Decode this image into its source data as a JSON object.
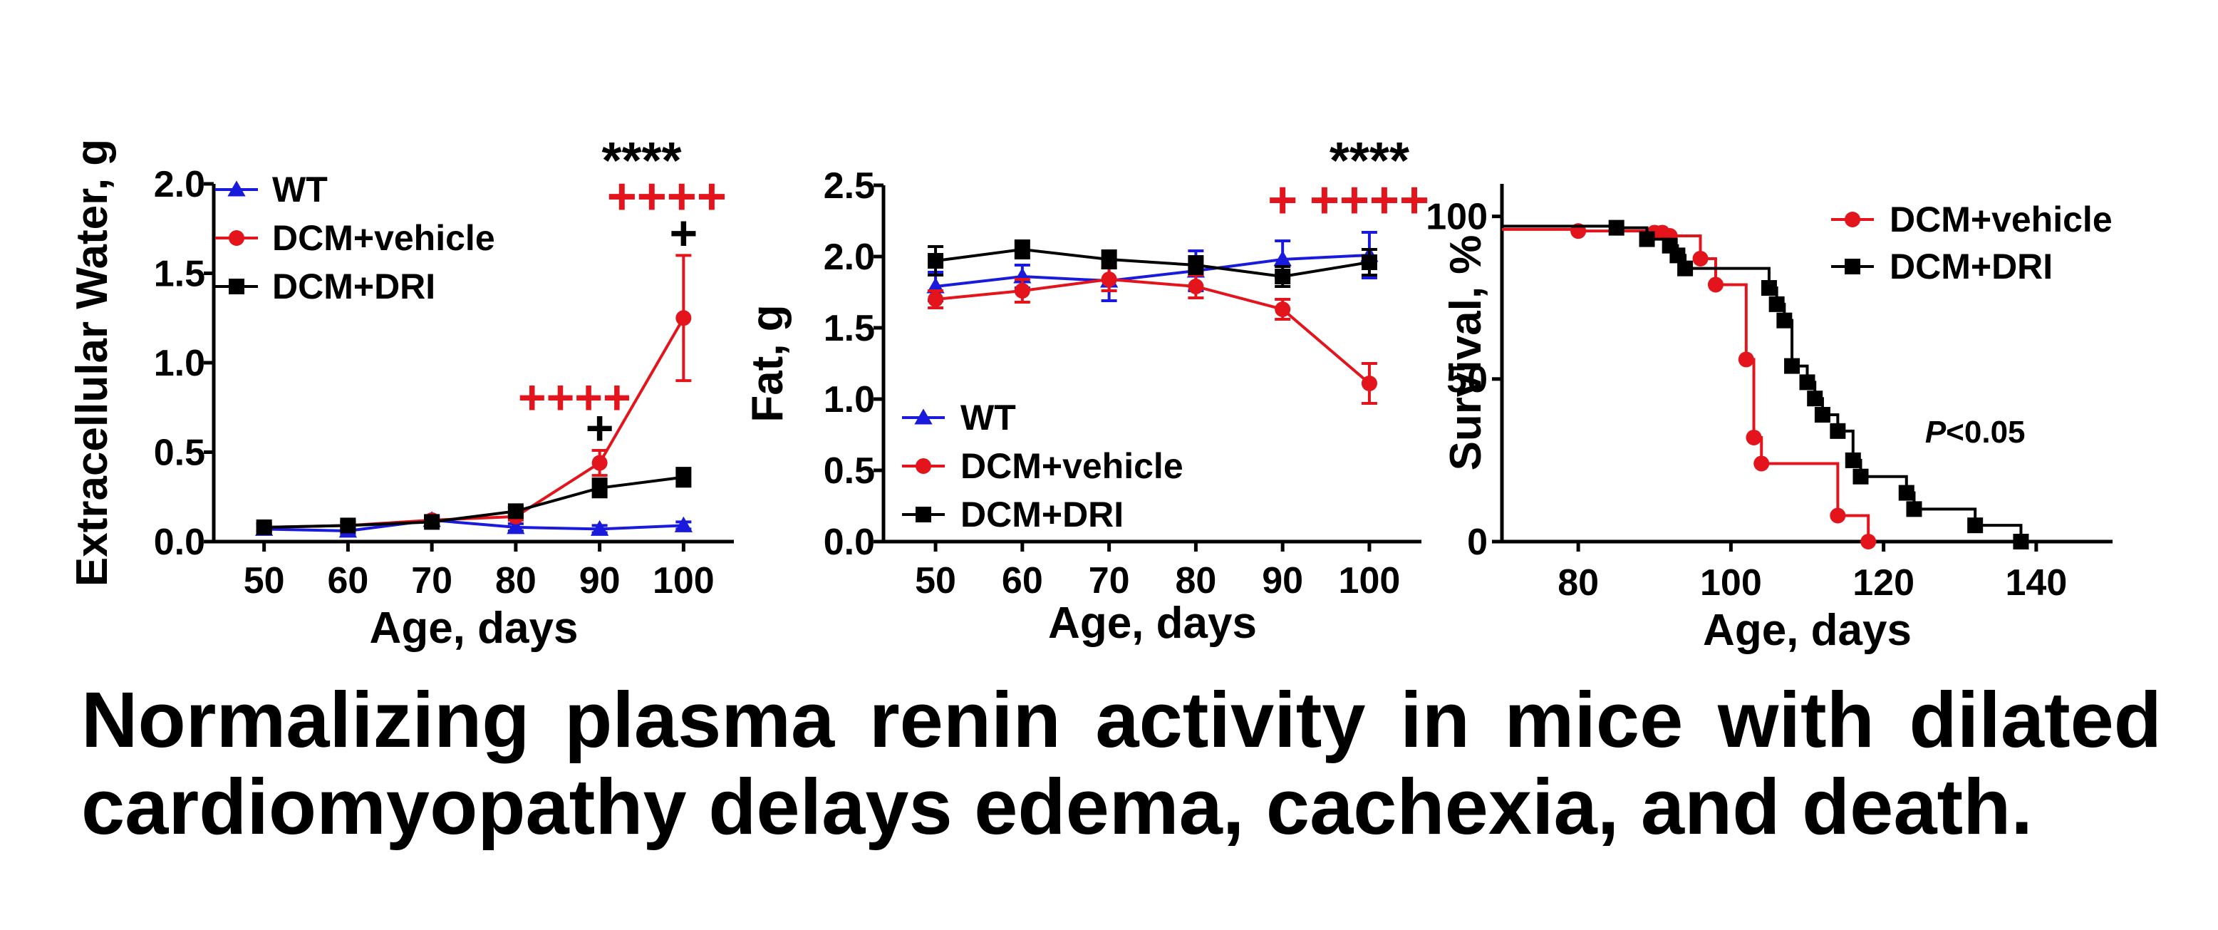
{
  "caption": "Normalizing plasma renin activity in mice with dilated cardiomyopathy delays edema, cachexia, and death.",
  "colors": {
    "wt": "#1a1adc",
    "vehicle": "#e3141b",
    "dri": "#000000"
  },
  "chart_data": [
    {
      "type": "line",
      "title": "",
      "xlabel": "Age, days",
      "ylabel": "Extracellular Water, g",
      "x": [
        50,
        60,
        70,
        80,
        90,
        100
      ],
      "xlim": [
        44,
        106
      ],
      "ylim": [
        0,
        2.0
      ],
      "xticks": [
        "50",
        "60",
        "70",
        "80",
        "90",
        "100"
      ],
      "yticks": [
        "0.0",
        "0.5",
        "1.0",
        "1.5",
        "2.0"
      ],
      "legend_position": "top-left",
      "series": [
        {
          "name": "WT",
          "marker": "triangle",
          "color": "#1a1adc",
          "values": [
            0.07,
            0.06,
            0.12,
            0.08,
            0.07,
            0.09
          ],
          "errors": [
            0.02,
            0.02,
            0.02,
            0.02,
            0.02,
            0.02
          ]
        },
        {
          "name": "DCM+vehicle",
          "marker": "circle",
          "color": "#e3141b",
          "values": [
            0.08,
            0.09,
            0.12,
            0.14,
            0.44,
            1.25
          ],
          "errors": [
            0.02,
            0.02,
            0.02,
            0.02,
            0.07,
            0.35
          ]
        },
        {
          "name": "DCM+DRI",
          "marker": "square",
          "color": "#000000",
          "values": [
            0.08,
            0.09,
            0.11,
            0.17,
            0.3,
            0.36
          ],
          "errors": [
            0.02,
            0.02,
            0.02,
            0.02,
            0.05,
            0.05
          ]
        }
      ],
      "annotations": [
        {
          "text": "****",
          "x": 95,
          "color": "#000000",
          "anchor": "top"
        },
        {
          "text": "++++",
          "x": 98,
          "color": "#e3141b",
          "anchor": "top"
        },
        {
          "text": "+",
          "x": 100,
          "y": 1.72,
          "color": "#000000"
        },
        {
          "text": "++++",
          "x": 87,
          "y": 0.8,
          "color": "#e3141b"
        },
        {
          "text": "+",
          "x": 90,
          "y": 0.63,
          "color": "#000000"
        }
      ]
    },
    {
      "type": "line",
      "title": "",
      "xlabel": "Age, days",
      "ylabel": "Fat, g",
      "x": [
        50,
        60,
        70,
        80,
        90,
        100
      ],
      "xlim": [
        44,
        106
      ],
      "ylim": [
        0,
        2.5
      ],
      "xticks": [
        "50",
        "60",
        "70",
        "80",
        "90",
        "100"
      ],
      "yticks": [
        "0.0",
        "0.5",
        "1.0",
        "1.5",
        "2.0",
        "2.5"
      ],
      "legend_position": "bottom-left",
      "series": [
        {
          "name": "WT",
          "marker": "triangle",
          "color": "#1a1adc",
          "values": [
            1.79,
            1.86,
            1.83,
            1.9,
            1.98,
            2.01
          ],
          "errors": [
            0.1,
            0.08,
            0.14,
            0.14,
            0.13,
            0.16
          ]
        },
        {
          "name": "DCM+vehicle",
          "marker": "circle",
          "color": "#e3141b",
          "values": [
            1.7,
            1.76,
            1.84,
            1.79,
            1.63,
            1.11
          ],
          "errors": [
            0.06,
            0.08,
            0.08,
            0.08,
            0.07,
            0.14
          ]
        },
        {
          "name": "DCM+DRI",
          "marker": "square",
          "color": "#000000",
          "values": [
            1.97,
            2.05,
            1.98,
            1.94,
            1.86,
            1.96
          ],
          "errors": [
            0.1,
            0.06,
            0.06,
            0.06,
            0.07,
            0.09
          ]
        }
      ],
      "annotations": [
        {
          "text": "****",
          "x": 100,
          "color": "#000000",
          "anchor": "top"
        },
        {
          "text": "+",
          "x": 90,
          "color": "#e3141b",
          "anchor": "top"
        },
        {
          "text": "++++",
          "x": 100,
          "color": "#e3141b",
          "anchor": "top"
        }
      ]
    },
    {
      "type": "line",
      "subtype": "step",
      "title": "",
      "xlabel": "Age, days",
      "ylabel": "Survival, %",
      "xlim": [
        70,
        150
      ],
      "ylim": [
        0,
        110
      ],
      "xticks": [
        "80",
        "100",
        "120",
        "140"
      ],
      "xtick_values": [
        80,
        100,
        120,
        140
      ],
      "yticks": [
        "0",
        "50",
        "100"
      ],
      "ytick_values": [
        0,
        50,
        100
      ],
      "legend_position": "top-right",
      "series": [
        {
          "name": "DCM+vehicle",
          "marker": "circle",
          "color": "#e3141b",
          "x": [
            70,
            80,
            90,
            91,
            92,
            96,
            98,
            102,
            103,
            104,
            114,
            118
          ],
          "values": [
            96,
            95.5,
            95,
            95,
            94,
            87,
            79,
            56,
            32,
            24,
            8,
            0
          ]
        },
        {
          "name": "DCM+DRI",
          "marker": "square",
          "color": "#000000",
          "x": [
            70,
            85,
            89,
            92,
            93,
            94,
            105,
            106,
            107,
            108,
            110,
            111,
            112,
            114,
            116,
            117,
            123,
            124,
            132,
            138
          ],
          "values": [
            97,
            96.5,
            93,
            91,
            88,
            84,
            78,
            73,
            68,
            54,
            49,
            44,
            39,
            34,
            25,
            20,
            15,
            10,
            5,
            0
          ]
        }
      ],
      "annotations": [
        {
          "text": "P<0.05",
          "x": 132,
          "y": 34,
          "color": "#000000"
        }
      ]
    }
  ]
}
